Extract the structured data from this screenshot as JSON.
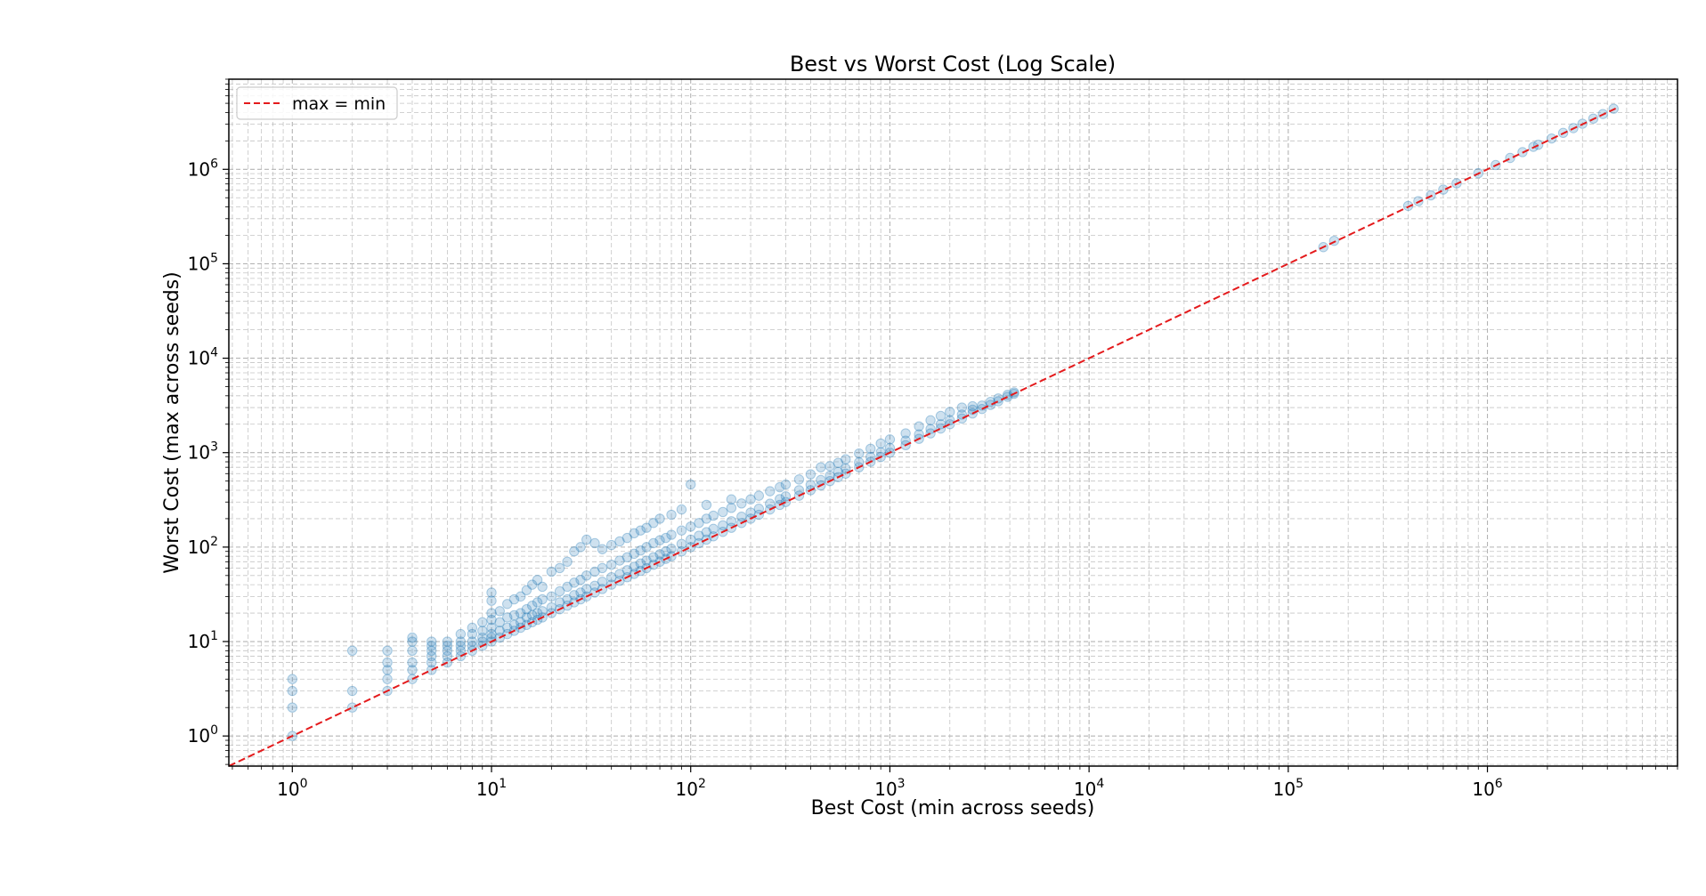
{
  "chart_data": {
    "type": "scatter",
    "title": "Best vs Worst Cost (Log Scale)",
    "xlabel": "Best Cost (min across seeds)",
    "ylabel": "Worst Cost (max across seeds)",
    "xscale": "log",
    "yscale": "log",
    "xlim": [
      0.48,
      9000000
    ],
    "ylim": [
      0.48,
      9000000
    ],
    "xticks": [
      {
        "base": "10",
        "exp": "0",
        "value": 1
      },
      {
        "base": "10",
        "exp": "1",
        "value": 10
      },
      {
        "base": "10",
        "exp": "2",
        "value": 100
      },
      {
        "base": "10",
        "exp": "3",
        "value": 1000
      },
      {
        "base": "10",
        "exp": "4",
        "value": 10000
      },
      {
        "base": "10",
        "exp": "5",
        "value": 100000
      },
      {
        "base": "10",
        "exp": "6",
        "value": 1000000
      }
    ],
    "yticks": [
      {
        "base": "10",
        "exp": "0",
        "value": 1
      },
      {
        "base": "10",
        "exp": "1",
        "value": 10
      },
      {
        "base": "10",
        "exp": "2",
        "value": 100
      },
      {
        "base": "10",
        "exp": "3",
        "value": 1000
      },
      {
        "base": "10",
        "exp": "4",
        "value": 10000
      },
      {
        "base": "10",
        "exp": "5",
        "value": 100000
      },
      {
        "base": "10",
        "exp": "6",
        "value": 1000000
      }
    ],
    "grid": true,
    "legend": {
      "placement": "top-left",
      "entries": [
        "max = min"
      ]
    },
    "reference_line": {
      "label": "max = min",
      "x": [
        0.48,
        4500000
      ],
      "y": [
        0.48,
        4500000
      ],
      "color": "#e41a1c",
      "style": "dashed"
    },
    "point_color": "#1f77b4",
    "series": [
      {
        "values": [
          [
            1,
            1
          ],
          [
            1,
            2
          ],
          [
            1,
            3
          ],
          [
            1,
            4
          ],
          [
            2,
            2
          ],
          [
            2,
            3
          ],
          [
            2,
            8
          ],
          [
            3,
            3
          ],
          [
            3,
            4
          ],
          [
            3,
            5
          ],
          [
            3,
            6
          ],
          [
            3,
            8
          ],
          [
            4,
            4
          ],
          [
            4,
            5
          ],
          [
            4,
            6
          ],
          [
            4,
            8
          ],
          [
            4,
            10
          ],
          [
            4,
            11
          ],
          [
            5,
            5
          ],
          [
            5,
            6
          ],
          [
            5,
            7
          ],
          [
            5,
            8
          ],
          [
            5,
            9
          ],
          [
            5,
            10
          ],
          [
            6,
            6
          ],
          [
            6,
            7
          ],
          [
            6,
            8
          ],
          [
            6,
            9
          ],
          [
            6,
            10
          ],
          [
            7,
            7
          ],
          [
            7,
            8
          ],
          [
            7,
            9
          ],
          [
            7,
            10
          ],
          [
            7,
            12
          ],
          [
            8,
            8
          ],
          [
            8,
            9
          ],
          [
            8,
            10
          ],
          [
            8,
            12
          ],
          [
            8,
            14
          ],
          [
            9,
            9
          ],
          [
            9,
            10
          ],
          [
            9,
            11
          ],
          [
            9,
            13
          ],
          [
            9,
            16
          ],
          [
            10,
            10
          ],
          [
            10,
            11
          ],
          [
            10,
            12
          ],
          [
            10,
            14
          ],
          [
            10,
            17
          ],
          [
            10,
            20
          ],
          [
            10,
            27
          ],
          [
            10,
            33
          ],
          [
            11,
            11
          ],
          [
            11,
            13
          ],
          [
            11,
            16
          ],
          [
            11,
            21
          ],
          [
            12,
            12
          ],
          [
            12,
            14
          ],
          [
            12,
            18
          ],
          [
            12,
            25
          ],
          [
            13,
            13
          ],
          [
            13,
            15
          ],
          [
            13,
            19
          ],
          [
            13,
            28
          ],
          [
            14,
            14
          ],
          [
            14,
            16
          ],
          [
            14,
            20
          ],
          [
            14,
            30
          ],
          [
            15,
            15
          ],
          [
            15,
            18
          ],
          [
            15,
            22
          ],
          [
            15,
            35
          ],
          [
            16,
            16
          ],
          [
            16,
            19
          ],
          [
            16,
            24
          ],
          [
            16,
            40
          ],
          [
            17,
            17
          ],
          [
            17,
            20
          ],
          [
            17,
            26
          ],
          [
            17,
            45
          ],
          [
            18,
            18
          ],
          [
            18,
            21
          ],
          [
            18,
            28
          ],
          [
            18,
            38
          ],
          [
            20,
            20
          ],
          [
            20,
            23
          ],
          [
            20,
            30
          ],
          [
            20,
            55
          ],
          [
            22,
            22
          ],
          [
            22,
            26
          ],
          [
            22,
            34
          ],
          [
            22,
            60
          ],
          [
            24,
            24
          ],
          [
            24,
            28
          ],
          [
            24,
            38
          ],
          [
            24,
            70
          ],
          [
            26,
            26
          ],
          [
            26,
            31
          ],
          [
            26,
            42
          ],
          [
            26,
            90
          ],
          [
            28,
            28
          ],
          [
            28,
            33
          ],
          [
            28,
            45
          ],
          [
            28,
            100
          ],
          [
            30,
            30
          ],
          [
            30,
            36
          ],
          [
            30,
            50
          ],
          [
            30,
            120
          ],
          [
            33,
            33
          ],
          [
            33,
            39
          ],
          [
            33,
            55
          ],
          [
            33,
            110
          ],
          [
            36,
            36
          ],
          [
            36,
            43
          ],
          [
            36,
            60
          ],
          [
            36,
            95
          ],
          [
            40,
            40
          ],
          [
            40,
            48
          ],
          [
            40,
            65
          ],
          [
            40,
            105
          ],
          [
            44,
            44
          ],
          [
            44,
            52
          ],
          [
            44,
            72
          ],
          [
            44,
            115
          ],
          [
            48,
            48
          ],
          [
            48,
            57
          ],
          [
            48,
            78
          ],
          [
            48,
            125
          ],
          [
            52,
            52
          ],
          [
            52,
            62
          ],
          [
            52,
            85
          ],
          [
            52,
            140
          ],
          [
            56,
            56
          ],
          [
            56,
            67
          ],
          [
            56,
            92
          ],
          [
            56,
            150
          ],
          [
            60,
            60
          ],
          [
            60,
            72
          ],
          [
            60,
            100
          ],
          [
            60,
            160
          ],
          [
            65,
            65
          ],
          [
            65,
            78
          ],
          [
            65,
            110
          ],
          [
            65,
            180
          ],
          [
            70,
            70
          ],
          [
            70,
            84
          ],
          [
            70,
            118
          ],
          [
            70,
            200
          ],
          [
            75,
            75
          ],
          [
            75,
            90
          ],
          [
            75,
            125
          ],
          [
            80,
            80
          ],
          [
            80,
            96
          ],
          [
            80,
            135
          ],
          [
            80,
            220
          ],
          [
            90,
            90
          ],
          [
            90,
            108
          ],
          [
            90,
            150
          ],
          [
            90,
            250
          ],
          [
            100,
            100
          ],
          [
            100,
            120
          ],
          [
            100,
            165
          ],
          [
            100,
            460
          ],
          [
            110,
            110
          ],
          [
            110,
            132
          ],
          [
            110,
            180
          ],
          [
            120,
            120
          ],
          [
            120,
            144
          ],
          [
            120,
            200
          ],
          [
            120,
            280
          ],
          [
            130,
            130
          ],
          [
            130,
            156
          ],
          [
            130,
            215
          ],
          [
            145,
            145
          ],
          [
            145,
            170
          ],
          [
            145,
            235
          ],
          [
            160,
            160
          ],
          [
            160,
            188
          ],
          [
            160,
            260
          ],
          [
            160,
            320
          ],
          [
            180,
            180
          ],
          [
            180,
            210
          ],
          [
            180,
            290
          ],
          [
            200,
            200
          ],
          [
            200,
            232
          ],
          [
            200,
            320
          ],
          [
            220,
            220
          ],
          [
            220,
            255
          ],
          [
            220,
            350
          ],
          [
            250,
            250
          ],
          [
            250,
            288
          ],
          [
            250,
            390
          ],
          [
            280,
            280
          ],
          [
            280,
            322
          ],
          [
            280,
            430
          ],
          [
            300,
            300
          ],
          [
            300,
            345
          ],
          [
            300,
            460
          ],
          [
            350,
            350
          ],
          [
            350,
            400
          ],
          [
            350,
            520
          ],
          [
            400,
            400
          ],
          [
            400,
            456
          ],
          [
            400,
            590
          ],
          [
            450,
            450
          ],
          [
            450,
            513
          ],
          [
            450,
            700
          ],
          [
            500,
            500
          ],
          [
            500,
            570
          ],
          [
            500,
            720
          ],
          [
            550,
            550
          ],
          [
            550,
            625
          ],
          [
            550,
            780
          ],
          [
            600,
            600
          ],
          [
            600,
            680
          ],
          [
            600,
            850
          ],
          [
            700,
            700
          ],
          [
            700,
            790
          ],
          [
            700,
            980
          ],
          [
            800,
            800
          ],
          [
            800,
            900
          ],
          [
            800,
            1100
          ],
          [
            900,
            900
          ],
          [
            900,
            1010
          ],
          [
            900,
            1250
          ],
          [
            1000,
            1000
          ],
          [
            1000,
            1120
          ],
          [
            1000,
            1380
          ],
          [
            1200,
            1200
          ],
          [
            1200,
            1340
          ],
          [
            1200,
            1600
          ],
          [
            1400,
            1400
          ],
          [
            1400,
            1560
          ],
          [
            1400,
            1900
          ],
          [
            1600,
            1600
          ],
          [
            1600,
            1780
          ],
          [
            1600,
            2200
          ],
          [
            1800,
            1800
          ],
          [
            1800,
            2000
          ],
          [
            1800,
            2450
          ],
          [
            2000,
            2000
          ],
          [
            2000,
            2200
          ],
          [
            2000,
            2700
          ],
          [
            2300,
            2300
          ],
          [
            2300,
            2530
          ],
          [
            2300,
            3000
          ],
          [
            2600,
            2600
          ],
          [
            2600,
            2850
          ],
          [
            2600,
            3100
          ],
          [
            2900,
            2900
          ],
          [
            2900,
            3150
          ],
          [
            3200,
            3200
          ],
          [
            3200,
            3450
          ],
          [
            3500,
            3500
          ],
          [
            3500,
            3750
          ],
          [
            3900,
            3900
          ],
          [
            3900,
            4100
          ],
          [
            4200,
            4200
          ],
          [
            4200,
            4350
          ],
          [
            150000,
            150000
          ],
          [
            170000,
            175000
          ],
          [
            400000,
            410000
          ],
          [
            450000,
            460000
          ],
          [
            520000,
            530000
          ],
          [
            600000,
            610000
          ],
          [
            700000,
            710000
          ],
          [
            900000,
            910000
          ],
          [
            1100000,
            1110000
          ],
          [
            1300000,
            1320000
          ],
          [
            1500000,
            1520000
          ],
          [
            1700000,
            1730000
          ],
          [
            1800000,
            1820000
          ],
          [
            2100000,
            2120000
          ],
          [
            2400000,
            2430000
          ],
          [
            2700000,
            2730000
          ],
          [
            3000000,
            3040000
          ],
          [
            3400000,
            3440000
          ],
          [
            3800000,
            3850000
          ],
          [
            4300000,
            4380000
          ]
        ]
      }
    ]
  }
}
